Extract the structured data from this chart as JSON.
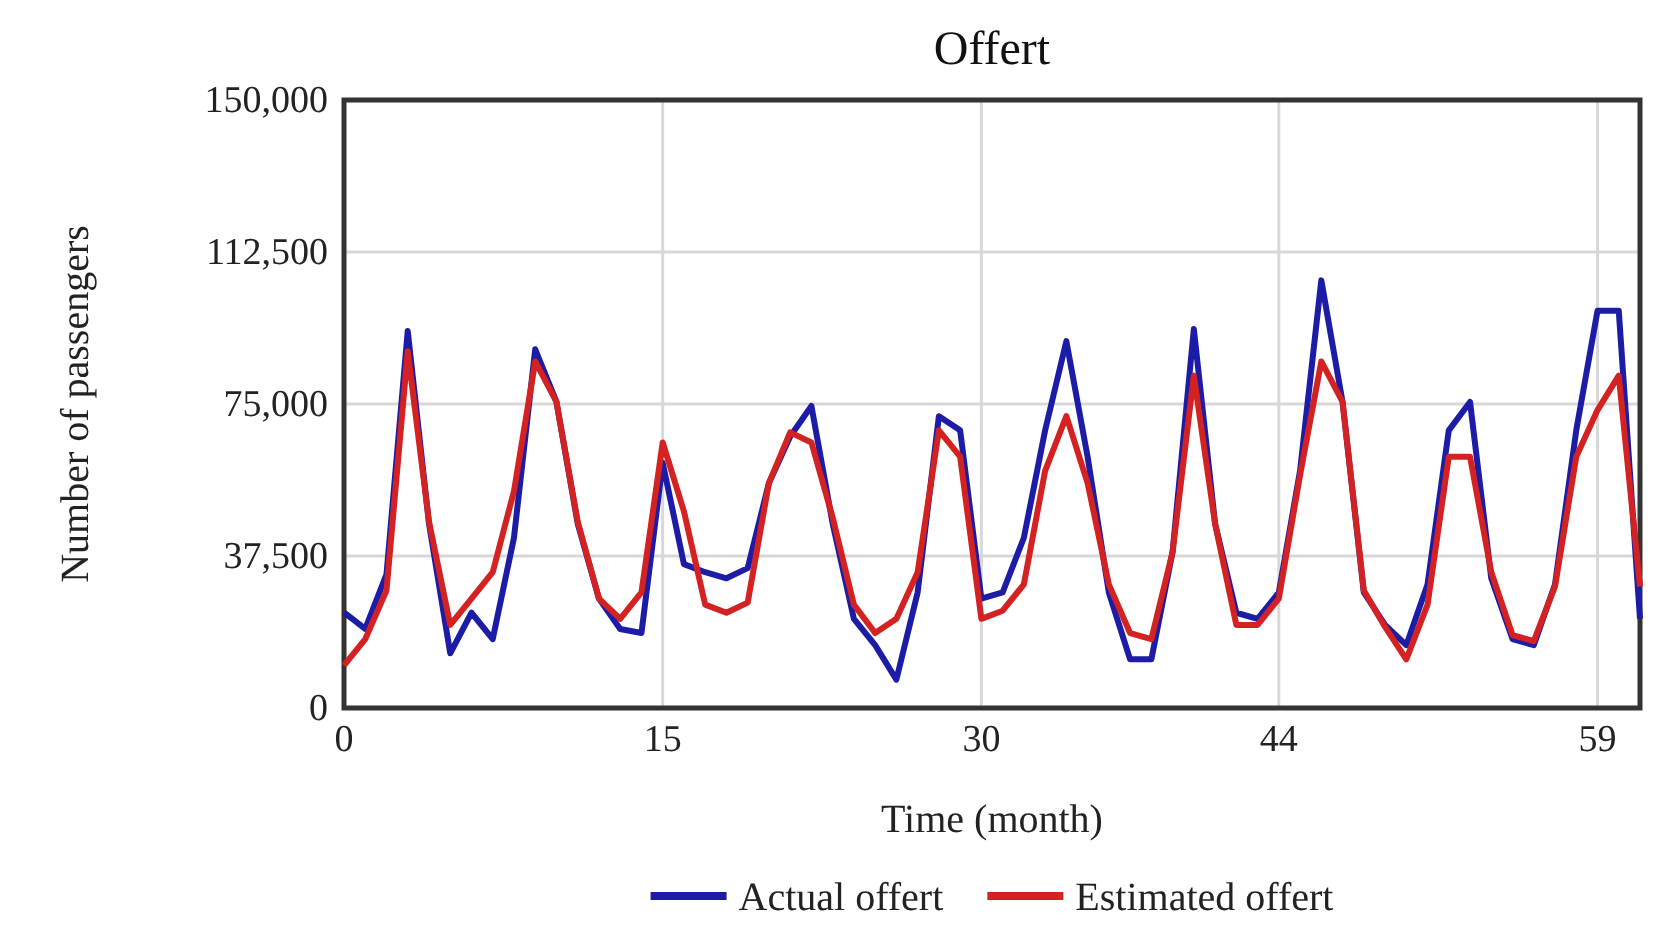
{
  "chart_data": {
    "type": "line",
    "title": "Offert",
    "xlabel": "Time (month)",
    "ylabel": "Number of passengers",
    "x": [
      0,
      1,
      2,
      3,
      4,
      5,
      6,
      7,
      8,
      9,
      10,
      11,
      12,
      13,
      14,
      15,
      16,
      17,
      18,
      19,
      20,
      21,
      22,
      23,
      24,
      25,
      26,
      27,
      28,
      29,
      30,
      31,
      32,
      33,
      34,
      35,
      36,
      37,
      38,
      39,
      40,
      41,
      42,
      43,
      44,
      45,
      46,
      47,
      48,
      49,
      50,
      51,
      52,
      53,
      54,
      55,
      56,
      57,
      58,
      59,
      60,
      61
    ],
    "series": [
      {
        "name": "Actual offert",
        "color": "#1c1ca6",
        "values": [
          23600,
          19500,
          33000,
          93000,
          45500,
          13500,
          23500,
          17000,
          42000,
          88500,
          75500,
          45500,
          27000,
          19500,
          18500,
          60500,
          35500,
          33500,
          32000,
          34500,
          55500,
          67000,
          74500,
          45500,
          22000,
          15500,
          7000,
          28500,
          72000,
          68500,
          27000,
          28500,
          42000,
          68500,
          90500,
          62000,
          28500,
          12000,
          12000,
          38500,
          93500,
          45500,
          23500,
          22000,
          28500,
          58500,
          105500,
          75500,
          28500,
          20500,
          15500,
          30500,
          68500,
          75500,
          32000,
          17000,
          15500,
          30500,
          68500,
          98000,
          98000,
          22000
        ]
      },
      {
        "name": "Estimated offert",
        "color": "#d42222",
        "values": [
          10500,
          17000,
          29000,
          88000,
          46000,
          20500,
          27000,
          33500,
          53500,
          85500,
          75500,
          46000,
          27000,
          22000,
          28500,
          65500,
          48500,
          25500,
          23500,
          26000,
          55500,
          68000,
          65500,
          47000,
          25500,
          18500,
          22000,
          33500,
          68500,
          62000,
          22000,
          24000,
          30500,
          58500,
          72000,
          55500,
          30500,
          18500,
          17000,
          38500,
          82000,
          45500,
          20500,
          20500,
          27000,
          57500,
          85500,
          75500,
          29000,
          20000,
          12000,
          25500,
          62000,
          62000,
          33500,
          18000,
          16500,
          30000,
          62000,
          73500,
          82000,
          30000
        ]
      }
    ],
    "xlim": [
      0,
      61
    ],
    "xticks": [
      0,
      15,
      30,
      44,
      59
    ],
    "ylim": [
      0,
      150000
    ],
    "yticks": [
      0,
      {
        "value": 37500,
        "label": "37,500"
      },
      {
        "value": 75000,
        "label": "75,000"
      },
      {
        "value": 112500,
        "label": "112,500"
      },
      {
        "value": 150000,
        "label": "150,000"
      }
    ],
    "grid": true,
    "legend": "bottom",
    "marker": "none",
    "line_style": "solid"
  }
}
